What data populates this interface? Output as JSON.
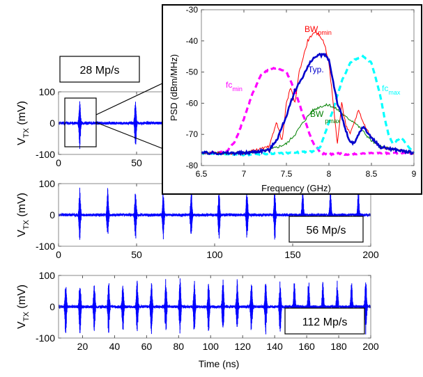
{
  "colors": {
    "pulse": "#0000ff",
    "bw_pmin": "#ff0000",
    "typ": "#0000cc",
    "bw_pmax": "#008000",
    "fc_min": "#ff00ff",
    "fc_max": "#00ffff",
    "axis": "#555555"
  },
  "chart_data": [
    {
      "type": "line",
      "name": "panel-28",
      "rate_label": "28 Mp/s",
      "ylabel_main": "V",
      "ylabel_sub": "TX",
      "ylabel_unit": " (mV)",
      "xlim": [
        0,
        200
      ],
      "ylim": [
        -100,
        100
      ],
      "xticks": [
        0,
        50
      ],
      "xtick_labels": [
        "0",
        "50"
      ],
      "yticks": [
        100,
        0,
        -100
      ],
      "ytick_labels": [
        "100",
        "0",
        "-100"
      ],
      "pulse_times_ns": [
        13.6,
        49.3
      ],
      "pulse_amplitude_mv": 85
    },
    {
      "type": "line",
      "name": "panel-56",
      "rate_label": "56 Mp/s",
      "ylabel_main": "V",
      "ylabel_sub": "TX",
      "ylabel_unit": " (mV)",
      "xlim": [
        0,
        200
      ],
      "ylim": [
        -100,
        100
      ],
      "xticks": [
        0,
        50,
        100,
        150,
        200
      ],
      "xtick_labels": [
        "0",
        "50",
        "100",
        "150",
        "200"
      ],
      "yticks": [
        100,
        0,
        -100
      ],
      "ytick_labels": [
        "100",
        "0",
        "-100"
      ],
      "pulse_times_ns": [
        13.6,
        31.5,
        49.3,
        67.1,
        85,
        102.8,
        120.7,
        138.5,
        156.4,
        174.2,
        192.1
      ],
      "pulse_amplitude_mv": 85
    },
    {
      "type": "line",
      "name": "panel-112",
      "rate_label": "112 Mp/s",
      "ylabel_main": "V",
      "ylabel_sub": "TX",
      "ylabel_unit": " (mV)",
      "xlabel": "Time (ns)",
      "xlim": [
        5,
        200
      ],
      "ylim": [
        -100,
        100
      ],
      "xticks": [
        20,
        40,
        60,
        80,
        100,
        120,
        140,
        160,
        180,
        200
      ],
      "xtick_labels": [
        "20",
        "40",
        "60",
        "80",
        "100",
        "120",
        "140",
        "160",
        "180",
        "200"
      ],
      "yticks": [
        100,
        0,
        -100
      ],
      "ytick_labels": [
        "100",
        "0",
        "-100"
      ],
      "pulse_times_ns": [
        9.5,
        18.4,
        27.3,
        36.3,
        45.2,
        54.1,
        63,
        72,
        80.9,
        89.8,
        98.7,
        107.7,
        116.6,
        125.5,
        134.4,
        143.4,
        152.3,
        161.2,
        170.1,
        179.1,
        188,
        196.9
      ],
      "pulse_amplitude_mv": 90
    },
    {
      "type": "line",
      "name": "psd-inset",
      "xlabel": "Frequency (GHz)",
      "ylabel": "PSD (dBm/MHz)",
      "xlim": [
        6.5,
        9
      ],
      "ylim": [
        -80,
        -30
      ],
      "xticks": [
        6.5,
        7,
        7.5,
        8,
        8.5,
        9
      ],
      "xtick_labels": [
        "6.5",
        "7",
        "7.5",
        "8",
        "8.5",
        "9"
      ],
      "yticks": [
        -30,
        -40,
        -50,
        -60,
        -70,
        -80
      ],
      "ytick_labels": [
        "-30",
        "-40",
        "-50",
        "-60",
        "-70",
        "-80"
      ],
      "series": [
        {
          "name": "fcmin",
          "color_key": "fc_min",
          "dash": true,
          "x": [
            6.5,
            6.8,
            6.9,
            7,
            7.1,
            7.2,
            7.3,
            7.4,
            7.5,
            7.6,
            7.7,
            7.8,
            7.9,
            8,
            8.1,
            8.2,
            8.5,
            8.8,
            9
          ],
          "y": [
            -76,
            -75.5,
            -72,
            -65,
            -57,
            -51,
            -49,
            -48.7,
            -50,
            -56,
            -64,
            -72,
            -76,
            -76.5,
            -76,
            -76.5,
            -76,
            -76,
            -76
          ]
        },
        {
          "name": "fcmax",
          "color_key": "fc_max",
          "dash": true,
          "x": [
            6.5,
            7,
            7.5,
            7.8,
            7.9,
            8,
            8.05,
            8.15,
            8.25,
            8.3,
            8.4,
            8.5,
            8.6,
            8.65,
            8.7,
            8.75,
            8.85,
            9
          ],
          "y": [
            -76,
            -76.5,
            -76,
            -75.5,
            -74,
            -66,
            -62,
            -53,
            -47,
            -46,
            -45,
            -47,
            -57,
            -64,
            -70,
            -73,
            -71,
            -76
          ]
        },
        {
          "name": "BWpmax",
          "color_key": "bw_pmax",
          "dash": false,
          "x": [
            6.5,
            7,
            7.3,
            7.5,
            7.6,
            7.7,
            7.8,
            7.9,
            8,
            8.1,
            8.2,
            8.3,
            8.4,
            8.5,
            8.6,
            8.8,
            9
          ],
          "y": [
            -76,
            -76,
            -75,
            -73,
            -70,
            -66,
            -62.5,
            -61,
            -60.5,
            -62,
            -64.5,
            -66,
            -69,
            -72,
            -74,
            -75,
            -76
          ]
        },
        {
          "name": "BWpmin",
          "color_key": "bw_pmin",
          "dash": false,
          "x": [
            6.5,
            7,
            7.3,
            7.38,
            7.45,
            7.5,
            7.55,
            7.6,
            7.65,
            7.7,
            7.75,
            7.8,
            7.85,
            7.9,
            7.95,
            8,
            8.05,
            8.1,
            8.15,
            8.2,
            8.25,
            8.3,
            8.35,
            8.4,
            8.5,
            8.6,
            8.8,
            9
          ],
          "y": [
            -76,
            -76,
            -74,
            -66,
            -72,
            -60,
            -55,
            -60,
            -50,
            -45,
            -40,
            -38,
            -37.5,
            -38.5,
            -41,
            -47,
            -60,
            -73,
            -60,
            -67,
            -70,
            -66,
            -62,
            -66,
            -71,
            -74,
            -75,
            -76
          ]
        },
        {
          "name": "Typ.",
          "color_key": "typ",
          "dash": false,
          "x": [
            6.5,
            7,
            7.3,
            7.4,
            7.5,
            7.6,
            7.7,
            7.8,
            7.85,
            7.9,
            7.95,
            8,
            8.05,
            8.1,
            8.15,
            8.2,
            8.25,
            8.3,
            8.35,
            8.4,
            8.5,
            8.6,
            8.8,
            9
          ],
          "y": [
            -76,
            -76,
            -75,
            -71,
            -64,
            -56,
            -51,
            -46,
            -45,
            -44.5,
            -44.5,
            -46,
            -53,
            -60,
            -64,
            -69,
            -72.5,
            -73,
            -70,
            -67.5,
            -71,
            -74,
            -75,
            -76
          ]
        }
      ],
      "annotations": {
        "bw_pmin": {
          "main": "BW",
          "sub": "pmin"
        },
        "typ": {
          "main": "Typ."
        },
        "bw_pmax": {
          "main": "BW",
          "sub": "pmax"
        },
        "fc_min": {
          "main": "fc",
          "sub": "min"
        },
        "fc_max": {
          "main": "fc",
          "sub": "max"
        }
      }
    }
  ]
}
